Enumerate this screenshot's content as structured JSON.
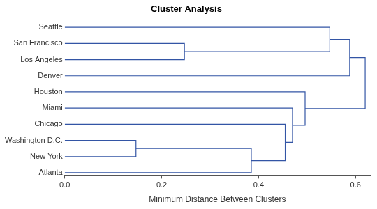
{
  "chart_data": {
    "type": "dendrogram",
    "title": "Cluster Analysis",
    "x_label": "Minimum Distance Between Clusters",
    "leaves": [
      "Seattle",
      "San Francisco",
      "Los Angeles",
      "Denver",
      "Houston",
      "Miami",
      "Chicago",
      "Washington D.C.",
      "New York",
      "Atlanta"
    ],
    "merges": [
      {
        "children": [
          "Washington D.C.",
          "New York"
        ],
        "distance": 0.147
      },
      {
        "children": [
          "San Francisco",
          "Los Angeles"
        ],
        "distance": 0.247
      },
      {
        "children": [
          0,
          "Atlanta"
        ],
        "distance": 0.385
      },
      {
        "children": [
          "Chicago",
          2
        ],
        "distance": 0.455
      },
      {
        "children": [
          "Miami",
          3
        ],
        "distance": 0.47
      },
      {
        "children": [
          "Houston",
          4
        ],
        "distance": 0.496
      },
      {
        "children": [
          "Seattle",
          1
        ],
        "distance": 0.547
      },
      {
        "children": [
          6,
          "Denver"
        ],
        "distance": 0.588
      },
      {
        "children": [
          7,
          5
        ],
        "distance": 0.62
      }
    ],
    "xlim": [
      0,
      0.63
    ],
    "xticks": [
      {
        "value": 0,
        "label": "0.0"
      },
      0.2,
      0.4,
      0.6
    ],
    "color": "#3355a5",
    "grid": false
  }
}
